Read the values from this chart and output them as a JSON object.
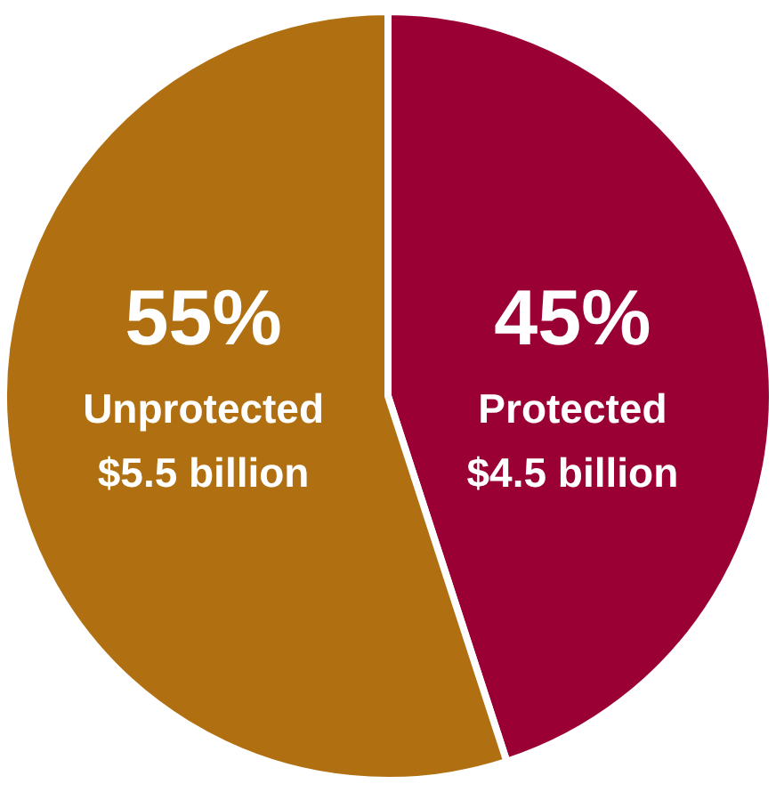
{
  "chart_data": {
    "type": "pie",
    "categories": [
      "Protected",
      "Unprotected"
    ],
    "values": [
      45,
      55
    ],
    "colors": [
      "#9b0034",
      "#b07012"
    ],
    "value_labels": [
      "45%",
      "55%"
    ],
    "annotations": [
      "$4.5 billion",
      "$5.5 billion"
    ]
  }
}
